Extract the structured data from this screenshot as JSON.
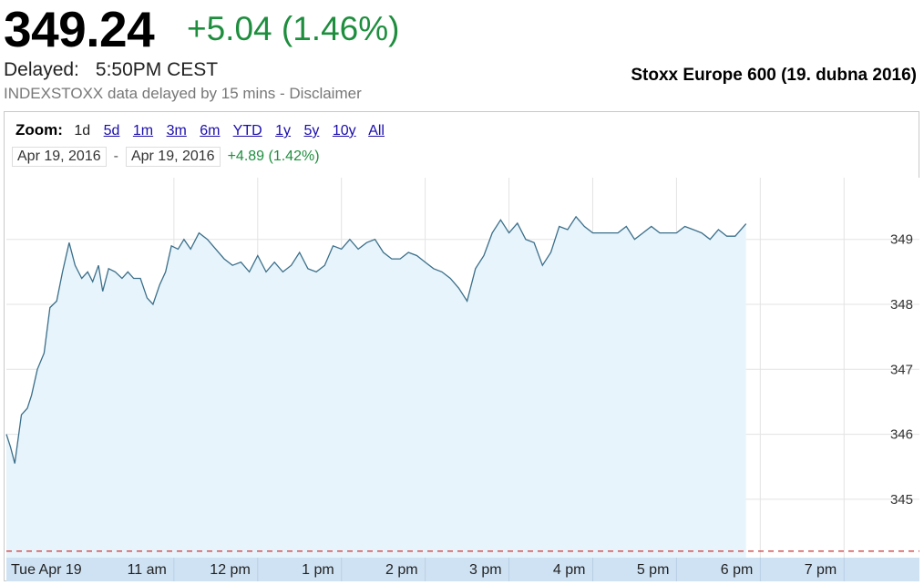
{
  "header": {
    "price": "349.24",
    "change": "+5.04 (1.46%)",
    "delayed_label": "Delayed:",
    "delayed_time": "5:50PM CEST",
    "note": "INDEXSTOXX data delayed by 15 mins - Disclaimer",
    "caption": "Stoxx Europe 600 (19. dubna 2016)"
  },
  "colors": {
    "positive": "#1e8e3e",
    "line": "#3a6f8a",
    "fill": "#e8f4fb",
    "grid": "#e3e3e3",
    "axis_band": "#cfe2f3",
    "prev_close": "#cc3333"
  },
  "toolbar": {
    "zoom_label": "Zoom:",
    "zoom_options": [
      "1d",
      "5d",
      "1m",
      "3m",
      "6m",
      "YTD",
      "1y",
      "5y",
      "10y",
      "All"
    ],
    "active_zoom": "1d",
    "range_start": "Apr 19, 2016",
    "range_dash": "-",
    "range_end": "Apr 19, 2016",
    "range_change": "+4.89 (1.42%)"
  },
  "chart_data": {
    "type": "area",
    "x_unit": "hours (CEST)",
    "x_labels": [
      "Tue Apr 19",
      "11 am",
      "12 pm",
      "1 pm",
      "2 pm",
      "3 pm",
      "4 pm",
      "5 pm",
      "6 pm",
      "7 pm"
    ],
    "y_ticks": [
      345,
      346,
      347,
      348,
      349
    ],
    "ylim": [
      344.1,
      349.95
    ],
    "xlim": [
      9.0,
      19.9
    ],
    "previous_close": 344.2,
    "grid": true,
    "series": [
      {
        "x": [
          9.0,
          9.05,
          9.1,
          9.18,
          9.25,
          9.3,
          9.37,
          9.45,
          9.52,
          9.6,
          9.67,
          9.75,
          9.82,
          9.9,
          9.97,
          10.03,
          10.1,
          10.15,
          10.22,
          10.3,
          10.38,
          10.45,
          10.52,
          10.6,
          10.68,
          10.75,
          10.83,
          10.9,
          10.97,
          11.05,
          11.12,
          11.2,
          11.3,
          11.4,
          11.5,
          11.6,
          11.7,
          11.8,
          11.9,
          12.0,
          12.1,
          12.2,
          12.3,
          12.4,
          12.5,
          12.6,
          12.7,
          12.8,
          12.9,
          13.0,
          13.1,
          13.2,
          13.3,
          13.4,
          13.5,
          13.6,
          13.7,
          13.8,
          13.9,
          14.0,
          14.1,
          14.2,
          14.3,
          14.4,
          14.5,
          14.6,
          14.7,
          14.8,
          14.9,
          15.0,
          15.1,
          15.2,
          15.3,
          15.4,
          15.5,
          15.6,
          15.7,
          15.8,
          15.9,
          16.0,
          16.1,
          16.2,
          16.3,
          16.4,
          16.5,
          16.6,
          16.7,
          16.8,
          16.9,
          17.0,
          17.1,
          17.2,
          17.3,
          17.4,
          17.5,
          17.6,
          17.7,
          17.83
        ],
        "values": [
          346.0,
          345.8,
          345.55,
          346.3,
          346.4,
          346.6,
          347.0,
          347.25,
          347.95,
          348.05,
          348.5,
          348.95,
          348.6,
          348.4,
          348.5,
          348.35,
          348.6,
          348.2,
          348.55,
          348.5,
          348.4,
          348.5,
          348.4,
          348.4,
          348.1,
          348.0,
          348.3,
          348.5,
          348.9,
          348.85,
          349.0,
          348.85,
          349.1,
          349.0,
          348.85,
          348.7,
          348.6,
          348.65,
          348.5,
          348.75,
          348.5,
          348.65,
          348.5,
          348.6,
          348.8,
          348.55,
          348.5,
          348.6,
          348.9,
          348.85,
          349.0,
          348.85,
          348.95,
          349.0,
          348.8,
          348.7,
          348.7,
          348.8,
          348.75,
          348.65,
          348.55,
          348.5,
          348.4,
          348.25,
          348.05,
          348.55,
          348.75,
          349.1,
          349.3,
          349.1,
          349.25,
          349.0,
          348.95,
          348.6,
          348.8,
          349.2,
          349.15,
          349.35,
          349.2,
          349.1,
          349.1,
          349.1,
          349.1,
          349.2,
          349.0,
          349.1,
          349.2,
          349.1,
          349.1,
          349.1,
          349.2,
          349.15,
          349.1,
          349.0,
          349.15,
          349.05,
          349.05,
          349.24
        ]
      }
    ]
  }
}
